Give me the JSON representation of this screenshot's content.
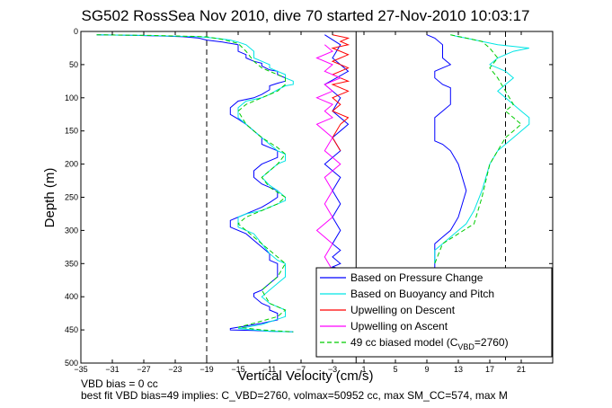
{
  "chart_data": {
    "type": "line",
    "title": "SG502 RossSea Nov 2010, dive 70 started 27-Nov-2010 10:03:17",
    "xlabel": "Vertical Velocity (cm/s)",
    "ylabel": "Depth (m)",
    "xlim": [
      -35,
      25
    ],
    "ylim": [
      0,
      500
    ],
    "y_reversed": true,
    "xticks": [
      -35,
      -31,
      -27,
      -23,
      -19,
      -15,
      -11,
      -7,
      -3,
      1,
      5,
      9,
      13,
      17,
      21
    ],
    "yticks": [
      0,
      50,
      100,
      150,
      200,
      250,
      300,
      350,
      400,
      450,
      500
    ],
    "grid": false,
    "legend_position": "bottom-right",
    "vertical_lines": [
      {
        "x": -19,
        "style": "dashed"
      },
      {
        "x": 0,
        "style": "solid"
      },
      {
        "x": 19,
        "style": "dashed"
      }
    ],
    "series": [
      {
        "name": "Based on Pressure Change",
        "color": "#0000ff",
        "groups": [
          {
            "x": [
              -33,
              -28,
              -24,
              -22,
              -20,
              -19,
              -17,
              -16,
              -15,
              -15,
              -14,
              -14,
              -13,
              -12,
              -12,
              -11,
              -10,
              -10,
              -9,
              -9,
              -10,
              -11,
              -11,
              -12,
              -13,
              -15,
              -16,
              -16,
              -15,
              -14,
              -13,
              -12,
              -12,
              -11,
              -10,
              -10,
              -10,
              -11,
              -12,
              -13,
              -13,
              -12,
              -11,
              -10,
              -10,
              -11,
              -12,
              -13,
              -14,
              -15,
              -16,
              -16,
              -14,
              -13,
              -12,
              -11,
              -11,
              -10,
              -10,
              -10,
              -11,
              -12,
              -13,
              -13,
              -12,
              -11,
              -11,
              -10,
              -10,
              -10,
              -12,
              -13,
              -14,
              -15,
              -16,
              -16,
              -13,
              -11,
              -8
            ],
            "y": [
              5,
              6,
              7,
              8,
              10,
              13,
              16,
              18,
              20,
              30,
              35,
              40,
              45,
              48,
              52,
              58,
              60,
              65,
              70,
              75,
              78,
              82,
              88,
              95,
              100,
              105,
              115,
              125,
              132,
              140,
              150,
              160,
              170,
              175,
              180,
              185,
              190,
              195,
              200,
              210,
              220,
              230,
              235,
              240,
              250,
              258,
              265,
              270,
              275,
              280,
              285,
              295,
              305,
              315,
              325,
              335,
              345,
              350,
              360,
              370,
              380,
              390,
              395,
              400,
              410,
              415,
              420,
              425,
              430,
              435,
              440,
              442,
              444,
              446,
              448,
              450,
              451,
              452,
              453
            ]
          },
          {
            "x": [
              9,
              10,
              11,
              11,
              11,
              12,
              11,
              10,
              10,
              10,
              11,
              12,
              12,
              12,
              12,
              11,
              10,
              10,
              10,
              11,
              12,
              13,
              14,
              13,
              12,
              11,
              10,
              10,
              10,
              10,
              10
            ],
            "y": [
              5,
              10,
              20,
              30,
              40,
              50,
              55,
              60,
              65,
              70,
              80,
              85,
              90,
              100,
              110,
              120,
              130,
              150,
              165,
              170,
              180,
              200,
              240,
              280,
              300,
              310,
              320,
              330,
              340,
              350,
              360
            ]
          },
          {
            "x": [
              -4,
              -2,
              -3,
              -1,
              -4,
              -2,
              -3,
              -1,
              -3,
              -2,
              -4,
              -2,
              -3,
              -2,
              -3,
              -2,
              -3,
              -2,
              -3,
              -2,
              -3,
              -2,
              -3
            ],
            "y": [
              5,
              20,
              40,
              60,
              80,
              100,
              120,
              140,
              160,
              180,
              200,
              220,
              240,
              260,
              280,
              300,
              320,
              330,
              340,
              350,
              355,
              358,
              360
            ]
          }
        ]
      },
      {
        "name": "Based on Buoyancy and Pitch",
        "color": "#00e5e5",
        "groups": [
          {
            "x": [
              -33,
              -27,
              -23,
              -20,
              -18,
              -16,
              -15,
              -14,
              -13,
              -13,
              -12,
              -11,
              -11,
              -10,
              -9,
              -9,
              -8,
              -8,
              -9,
              -10,
              -11,
              -12,
              -14,
              -15,
              -15,
              -14,
              -13,
              -12,
              -11,
              -10,
              -9,
              -9,
              -9,
              -10,
              -11,
              -12,
              -11,
              -10,
              -9,
              -9,
              -10,
              -11,
              -12,
              -14,
              -15,
              -15,
              -13,
              -12,
              -11,
              -10,
              -9,
              -9,
              -9,
              -10,
              -11,
              -12,
              -11,
              -10,
              -9,
              -9,
              -11,
              -12,
              -14,
              -15,
              -13,
              -11,
              -8
            ],
            "y": [
              5,
              6,
              7,
              8,
              10,
              13,
              16,
              20,
              30,
              40,
              45,
              50,
              55,
              60,
              65,
              70,
              75,
              80,
              82,
              88,
              95,
              100,
              105,
              115,
              130,
              140,
              150,
              160,
              170,
              180,
              185,
              190,
              195,
              200,
              210,
              220,
              232,
              240,
              250,
              255,
              260,
              265,
              270,
              275,
              280,
              295,
              305,
              320,
              335,
              345,
              350,
              360,
              370,
              380,
              390,
              400,
              410,
              415,
              420,
              430,
              438,
              442,
              446,
              448,
              450,
              452,
              453
            ]
          },
          {
            "x": [
              12,
              13,
              14,
              16,
              18,
              22,
              20,
              18,
              17,
              18,
              19,
              20,
              19,
              18,
              19,
              20,
              21,
              22,
              22,
              21,
              20,
              19,
              18,
              17,
              16,
              15,
              14,
              13,
              12,
              11,
              10,
              10,
              10
            ],
            "y": [
              5,
              8,
              10,
              15,
              20,
              25,
              30,
              40,
              50,
              55,
              60,
              70,
              80,
              90,
              100,
              110,
              120,
              130,
              140,
              150,
              160,
              170,
              180,
              200,
              240,
              270,
              290,
              300,
              310,
              320,
              330,
              340,
              350
            ]
          }
        ]
      },
      {
        "name": "Upwelling on Descent",
        "color": "#ff0000",
        "groups": [
          {
            "x": [
              -3,
              -1,
              -2,
              -1,
              -3,
              -2,
              -1,
              -2,
              -3,
              -2,
              -1,
              -2,
              -3,
              -2,
              -1,
              -3,
              -2,
              -1,
              -2,
              -3,
              -2,
              -3,
              -1,
              -2,
              -3,
              -2
            ],
            "y": [
              5,
              10,
              15,
              20,
              25,
              30,
              35,
              40,
              45,
              50,
              55,
              60,
              65,
              70,
              75,
              80,
              85,
              90,
              95,
              100,
              110,
              120,
              130,
              140,
              160,
              180
            ]
          }
        ]
      },
      {
        "name": "Upwelling on Ascent",
        "color": "#ff00ff",
        "groups": [
          {
            "x": [
              -4,
              -3,
              -5,
              -3,
              -4,
              -2,
              -4,
              -3,
              -5,
              -3,
              -4,
              -3,
              -5,
              -4,
              -3,
              -4,
              -2,
              -4,
              -3,
              -4,
              -3,
              -5,
              -3,
              -4,
              -3
            ],
            "y": [
              20,
              30,
              40,
              50,
              60,
              70,
              80,
              90,
              100,
              110,
              120,
              130,
              140,
              150,
              160,
              180,
              200,
              220,
              240,
              260,
              280,
              300,
              320,
              340,
              360
            ]
          }
        ]
      },
      {
        "name": "49 cc biased model (C_VBD=2760)",
        "color": "#00cc00",
        "groups": [
          {
            "x": [
              -33,
              -26,
              -22,
              -19,
              -17,
              -15,
              -14,
              -13,
              -12,
              -11,
              -10,
              -9,
              -9,
              -10,
              -12,
              -14,
              -15,
              -14,
              -12,
              -10,
              -9,
              -10,
              -12,
              -11,
              -9,
              -10,
              -12,
              -14,
              -15,
              -13,
              -11,
              -9,
              -10,
              -12,
              -11,
              -9,
              -10,
              -13,
              -15,
              -12,
              -8
            ],
            "y": [
              5,
              6,
              7,
              8,
              12,
              18,
              30,
              45,
              55,
              60,
              65,
              70,
              80,
              90,
              100,
              110,
              120,
              140,
              160,
              175,
              185,
              200,
              220,
              235,
              250,
              260,
              270,
              280,
              290,
              310,
              330,
              350,
              370,
              390,
              410,
              420,
              430,
              440,
              446,
              450,
              453
            ]
          },
          {
            "x": [
              12,
              14,
              16,
              17,
              18,
              17,
              18,
              19,
              20,
              19,
              20,
              21,
              20,
              19,
              18,
              17,
              16,
              15,
              13,
              11,
              10
            ],
            "y": [
              5,
              10,
              15,
              25,
              40,
              55,
              70,
              90,
              110,
              120,
              130,
              140,
              150,
              160,
              180,
              200,
              250,
              290,
              305,
              320,
              350
            ]
          }
        ]
      }
    ],
    "legend": [
      {
        "label": "Based on Pressure Change",
        "color": "#0000ff",
        "style": "solid"
      },
      {
        "label": "Based on Buoyancy and Pitch",
        "color": "#00e5e5",
        "style": "solid"
      },
      {
        "label": "Upwelling on Descent",
        "color": "#ff0000",
        "style": "solid"
      },
      {
        "label": "Upwelling on Ascent",
        "color": "#ff00ff",
        "style": "solid"
      },
      {
        "label": "49 cc biased model (C",
        "sub": "VBD",
        "suffix": "=2760)",
        "color": "#00cc00",
        "style": "dashed"
      }
    ]
  },
  "notes": [
    "VBD bias = 0 cc",
    "best fit VBD bias=49 implies: C_VBD=2760, volmax=50952 cc, max SM_CC=574, max M"
  ]
}
